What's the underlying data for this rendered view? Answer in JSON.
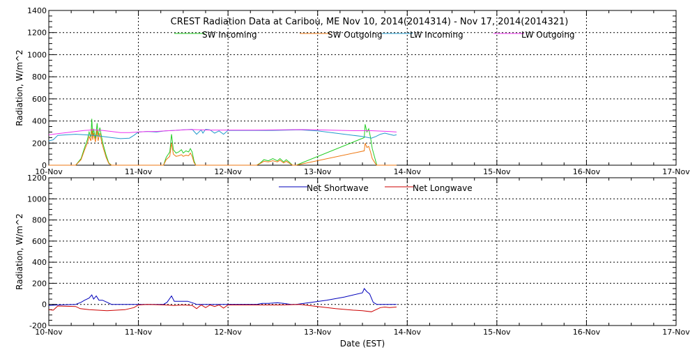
{
  "chart_data": [
    {
      "type": "line",
      "panel": "top",
      "title": "CREST Radiation Data at Caribou, ME   Nov 10, 2014(2014314) - Nov 17, 2014(2014321)",
      "xlabel": "",
      "ylabel": "Radiation, W/m^2",
      "x_unit": "days since 10-Nov",
      "xlim": [
        0,
        7
      ],
      "ylim": [
        0,
        1400
      ],
      "yticks": [
        "0",
        "200",
        "400",
        "600",
        "800",
        "1000",
        "1200",
        "1400"
      ],
      "xticks": [
        "10-Nov",
        "11-Nov",
        "12-Nov",
        "13-Nov",
        "14-Nov",
        "15-Nov",
        "16-Nov",
        "17-Nov"
      ],
      "grid": true,
      "legend_position": "top",
      "series": [
        {
          "name": "SW Incoming",
          "color": "#22cc22",
          "points": [
            [
              0,
              0
            ],
            [
              0.3,
              0
            ],
            [
              0.36,
              60
            ],
            [
              0.4,
              160
            ],
            [
              0.43,
              230
            ],
            [
              0.45,
              300
            ],
            [
              0.47,
              250
            ],
            [
              0.48,
              420
            ],
            [
              0.49,
              260
            ],
            [
              0.5,
              330
            ],
            [
              0.52,
              240
            ],
            [
              0.54,
              380
            ],
            [
              0.55,
              260
            ],
            [
              0.57,
              340
            ],
            [
              0.59,
              250
            ],
            [
              0.61,
              180
            ],
            [
              0.64,
              90
            ],
            [
              0.67,
              20
            ],
            [
              0.7,
              0
            ],
            [
              1.28,
              0
            ],
            [
              1.31,
              70
            ],
            [
              1.35,
              120
            ],
            [
              1.37,
              280
            ],
            [
              1.39,
              140
            ],
            [
              1.42,
              110
            ],
            [
              1.45,
              120
            ],
            [
              1.48,
              140
            ],
            [
              1.5,
              110
            ],
            [
              1.53,
              130
            ],
            [
              1.56,
              120
            ],
            [
              1.58,
              150
            ],
            [
              1.6,
              120
            ],
            [
              1.62,
              40
            ],
            [
              1.64,
              0
            ],
            [
              2.32,
              0
            ],
            [
              2.36,
              20
            ],
            [
              2.4,
              50
            ],
            [
              2.45,
              40
            ],
            [
              2.5,
              60
            ],
            [
              2.55,
              40
            ],
            [
              2.58,
              60
            ],
            [
              2.62,
              30
            ],
            [
              2.65,
              50
            ],
            [
              2.68,
              30
            ],
            [
              2.72,
              0
            ],
            [
              2.76,
              0
            ],
            [
              3.52,
              250
            ],
            [
              3.53,
              370
            ],
            [
              3.55,
              300
            ],
            [
              3.57,
              330
            ],
            [
              3.59,
              250
            ],
            [
              3.61,
              150
            ],
            [
              3.64,
              60
            ],
            [
              3.66,
              0
            ],
            [
              3.88,
              0
            ]
          ]
        },
        {
          "name": "SW Outgoing",
          "color": "#ee7711",
          "points": [
            [
              0,
              0
            ],
            [
              0.3,
              0
            ],
            [
              0.36,
              50
            ],
            [
              0.4,
              140
            ],
            [
              0.43,
              200
            ],
            [
              0.45,
              260
            ],
            [
              0.47,
              220
            ],
            [
              0.48,
              330
            ],
            [
              0.49,
              230
            ],
            [
              0.5,
              290
            ],
            [
              0.52,
              210
            ],
            [
              0.54,
              320
            ],
            [
              0.55,
              220
            ],
            [
              0.57,
              290
            ],
            [
              0.59,
              210
            ],
            [
              0.61,
              150
            ],
            [
              0.64,
              70
            ],
            [
              0.67,
              15
            ],
            [
              0.7,
              0
            ],
            [
              1.28,
              0
            ],
            [
              1.31,
              50
            ],
            [
              1.35,
              80
            ],
            [
              1.37,
              200
            ],
            [
              1.39,
              100
            ],
            [
              1.42,
              80
            ],
            [
              1.45,
              85
            ],
            [
              1.48,
              95
            ],
            [
              1.5,
              80
            ],
            [
              1.53,
              90
            ],
            [
              1.56,
              85
            ],
            [
              1.58,
              110
            ],
            [
              1.6,
              80
            ],
            [
              1.62,
              25
            ],
            [
              1.64,
              0
            ],
            [
              2.32,
              0
            ],
            [
              2.36,
              15
            ],
            [
              2.4,
              35
            ],
            [
              2.45,
              30
            ],
            [
              2.5,
              40
            ],
            [
              2.55,
              30
            ],
            [
              2.58,
              45
            ],
            [
              2.62,
              20
            ],
            [
              2.65,
              35
            ],
            [
              2.68,
              20
            ],
            [
              2.72,
              0
            ],
            [
              2.76,
              0
            ],
            [
              3.52,
              130
            ],
            [
              3.53,
              200
            ],
            [
              3.55,
              160
            ],
            [
              3.57,
              170
            ],
            [
              3.59,
              120
            ],
            [
              3.61,
              60
            ],
            [
              3.64,
              20
            ],
            [
              3.66,
              0
            ],
            [
              3.88,
              0
            ]
          ]
        },
        {
          "name": "LW Incoming",
          "color": "#2299cc",
          "points": [
            [
              0,
              220
            ],
            [
              0.05,
              230
            ],
            [
              0.1,
              270
            ],
            [
              0.2,
              275
            ],
            [
              0.3,
              280
            ],
            [
              0.4,
              275
            ],
            [
              0.5,
              270
            ],
            [
              0.6,
              260
            ],
            [
              0.7,
              250
            ],
            [
              0.8,
              240
            ],
            [
              0.9,
              245
            ],
            [
              0.95,
              270
            ],
            [
              1.0,
              300
            ],
            [
              1.1,
              305
            ],
            [
              1.2,
              300
            ],
            [
              1.3,
              310
            ],
            [
              1.4,
              315
            ],
            [
              1.5,
              320
            ],
            [
              1.6,
              325
            ],
            [
              1.65,
              280
            ],
            [
              1.7,
              320
            ],
            [
              1.72,
              290
            ],
            [
              1.75,
              325
            ],
            [
              1.8,
              320
            ],
            [
              1.85,
              290
            ],
            [
              1.9,
              310
            ],
            [
              1.95,
              280
            ],
            [
              2.0,
              315
            ],
            [
              2.2,
              315
            ],
            [
              2.5,
              315
            ],
            [
              2.8,
              320
            ],
            [
              3.0,
              310
            ],
            [
              3.2,
              290
            ],
            [
              3.4,
              270
            ],
            [
              3.5,
              260
            ],
            [
              3.6,
              245
            ],
            [
              3.65,
              260
            ],
            [
              3.7,
              280
            ],
            [
              3.75,
              290
            ],
            [
              3.8,
              280
            ],
            [
              3.85,
              270
            ],
            [
              3.88,
              275
            ]
          ]
        },
        {
          "name": "LW Outgoing",
          "color": "#ee33ee",
          "points": [
            [
              0,
              275
            ],
            [
              0.1,
              285
            ],
            [
              0.2,
              295
            ],
            [
              0.3,
              305
            ],
            [
              0.4,
              315
            ],
            [
              0.5,
              320
            ],
            [
              0.6,
              315
            ],
            [
              0.7,
              305
            ],
            [
              0.8,
              295
            ],
            [
              0.9,
              295
            ],
            [
              1.0,
              300
            ],
            [
              1.1,
              305
            ],
            [
              1.2,
              305
            ],
            [
              1.3,
              310
            ],
            [
              1.4,
              315
            ],
            [
              1.5,
              320
            ],
            [
              1.6,
              322
            ],
            [
              1.8,
              318
            ],
            [
              2.0,
              318
            ],
            [
              2.3,
              318
            ],
            [
              2.6,
              320
            ],
            [
              2.8,
              322
            ],
            [
              3.0,
              320
            ],
            [
              3.2,
              316
            ],
            [
              3.4,
              312
            ],
            [
              3.6,
              312
            ],
            [
              3.8,
              305
            ],
            [
              3.88,
              300
            ]
          ]
        }
      ]
    },
    {
      "type": "line",
      "panel": "bottom",
      "title": "",
      "xlabel": "Date (EST)",
      "ylabel": "Radiation, W/m^2",
      "x_unit": "days since 10-Nov",
      "xlim": [
        0,
        7
      ],
      "ylim": [
        -200,
        1200
      ],
      "yticks": [
        "-200",
        "0",
        "200",
        "400",
        "600",
        "800",
        "1000",
        "1200"
      ],
      "xticks": [
        "10-Nov",
        "11-Nov",
        "12-Nov",
        "13-Nov",
        "14-Nov",
        "15-Nov",
        "16-Nov",
        "17-Nov"
      ],
      "grid": true,
      "legend_position": "top",
      "series": [
        {
          "name": "Net Shortwave",
          "color": "#0000bb",
          "points": [
            [
              0,
              -10
            ],
            [
              0.1,
              -5
            ],
            [
              0.3,
              0
            ],
            [
              0.36,
              20
            ],
            [
              0.4,
              40
            ],
            [
              0.45,
              60
            ],
            [
              0.48,
              90
            ],
            [
              0.5,
              50
            ],
            [
              0.53,
              80
            ],
            [
              0.56,
              40
            ],
            [
              0.6,
              40
            ],
            [
              0.65,
              20
            ],
            [
              0.7,
              0
            ],
            [
              1.0,
              0
            ],
            [
              1.28,
              0
            ],
            [
              1.32,
              20
            ],
            [
              1.37,
              80
            ],
            [
              1.4,
              30
            ],
            [
              1.45,
              30
            ],
            [
              1.55,
              30
            ],
            [
              1.62,
              10
            ],
            [
              1.65,
              0
            ],
            [
              2.32,
              0
            ],
            [
              2.38,
              10
            ],
            [
              2.45,
              10
            ],
            [
              2.55,
              15
            ],
            [
              2.62,
              10
            ],
            [
              2.7,
              0
            ],
            [
              2.76,
              0
            ],
            [
              3.1,
              40
            ],
            [
              3.3,
              70
            ],
            [
              3.5,
              110
            ],
            [
              3.52,
              150
            ],
            [
              3.55,
              120
            ],
            [
              3.58,
              100
            ],
            [
              3.62,
              20
            ],
            [
              3.66,
              0
            ],
            [
              3.88,
              0
            ]
          ]
        },
        {
          "name": "Net Longwave",
          "color": "#cc0000",
          "points": [
            [
              0,
              -50
            ],
            [
              0.05,
              -55
            ],
            [
              0.1,
              -15
            ],
            [
              0.3,
              -20
            ],
            [
              0.35,
              -40
            ],
            [
              0.45,
              -50
            ],
            [
              0.55,
              -55
            ],
            [
              0.65,
              -60
            ],
            [
              0.75,
              -55
            ],
            [
              0.85,
              -50
            ],
            [
              0.95,
              -30
            ],
            [
              1.0,
              -5
            ],
            [
              1.1,
              0
            ],
            [
              1.3,
              -5
            ],
            [
              1.4,
              -10
            ],
            [
              1.5,
              -5
            ],
            [
              1.6,
              -10
            ],
            [
              1.65,
              -40
            ],
            [
              1.7,
              -5
            ],
            [
              1.75,
              -30
            ],
            [
              1.8,
              -5
            ],
            [
              1.85,
              -20
            ],
            [
              1.9,
              -5
            ],
            [
              1.95,
              -35
            ],
            [
              2.0,
              -5
            ],
            [
              2.3,
              -5
            ],
            [
              2.6,
              -5
            ],
            [
              2.8,
              0
            ],
            [
              3.0,
              -20
            ],
            [
              3.2,
              -40
            ],
            [
              3.4,
              -55
            ],
            [
              3.5,
              -60
            ],
            [
              3.6,
              -70
            ],
            [
              3.65,
              -50
            ],
            [
              3.7,
              -30
            ],
            [
              3.75,
              -25
            ],
            [
              3.8,
              -30
            ],
            [
              3.88,
              -25
            ]
          ]
        }
      ]
    }
  ]
}
